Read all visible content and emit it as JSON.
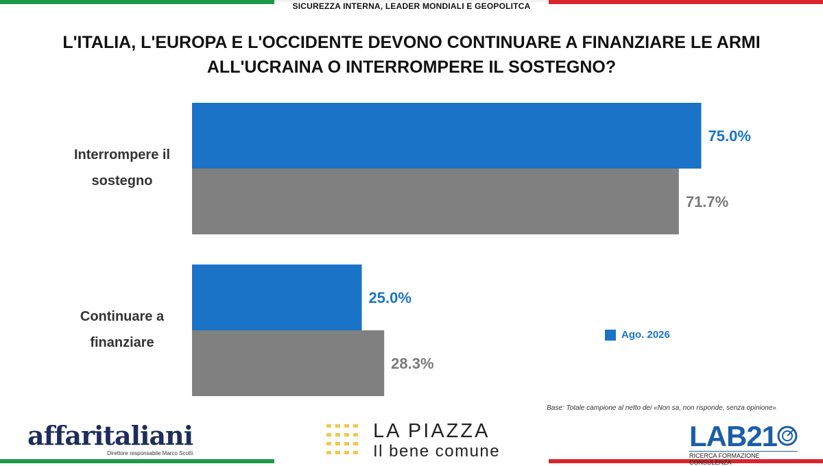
{
  "header": {
    "section_label": "SICUREZZA INTERNA, LEADER MONDIALI E GEOPOLITCA"
  },
  "chart_data": {
    "type": "bar",
    "orientation": "horizontal",
    "title": "L'ITALIA, L'EUROPA E L'OCCIDENTE DEVONO CONTINUARE A FINANZIARE LE ARMI ALL'UCRAINA O INTERROMPERE IL SOSTEGNO?",
    "categories": [
      "Interrompere il sostegno",
      "Continuare a finanziare"
    ],
    "category_lines": [
      [
        "Interrompere il",
        "sostegno"
      ],
      [
        "Continuare a",
        "finanziare"
      ]
    ],
    "series": [
      {
        "name": "Ago. 2026",
        "values": [
          75.0,
          25.0
        ],
        "labels": [
          "75.0%",
          "25.0%"
        ],
        "color": "#1a73c6"
      },
      {
        "values": [
          71.7,
          28.3
        ],
        "labels": [
          "71.7%",
          "28.3%"
        ],
        "color": "#808080"
      }
    ],
    "xlim": [
      0,
      100
    ],
    "grid": false,
    "legend": {
      "placement": "right",
      "entries": [
        "Ago. 2026"
      ]
    }
  },
  "footnote": "Base: Totale campione al netto dei «Non sa, non risponde, senza opinione»",
  "logos": {
    "affaritaliani": {
      "name": "affaritaliani",
      "subtitle": "Direttore responsabile Marco Scotti"
    },
    "lapiazza": {
      "title": "LA PIAZZA",
      "subtitle": "Il bene comune",
      "dot_color": "#f2c84b"
    },
    "lab21": {
      "name": "LAB21",
      "subtitle": "RICERCA FORMAZIONE CONSULENZA"
    }
  }
}
